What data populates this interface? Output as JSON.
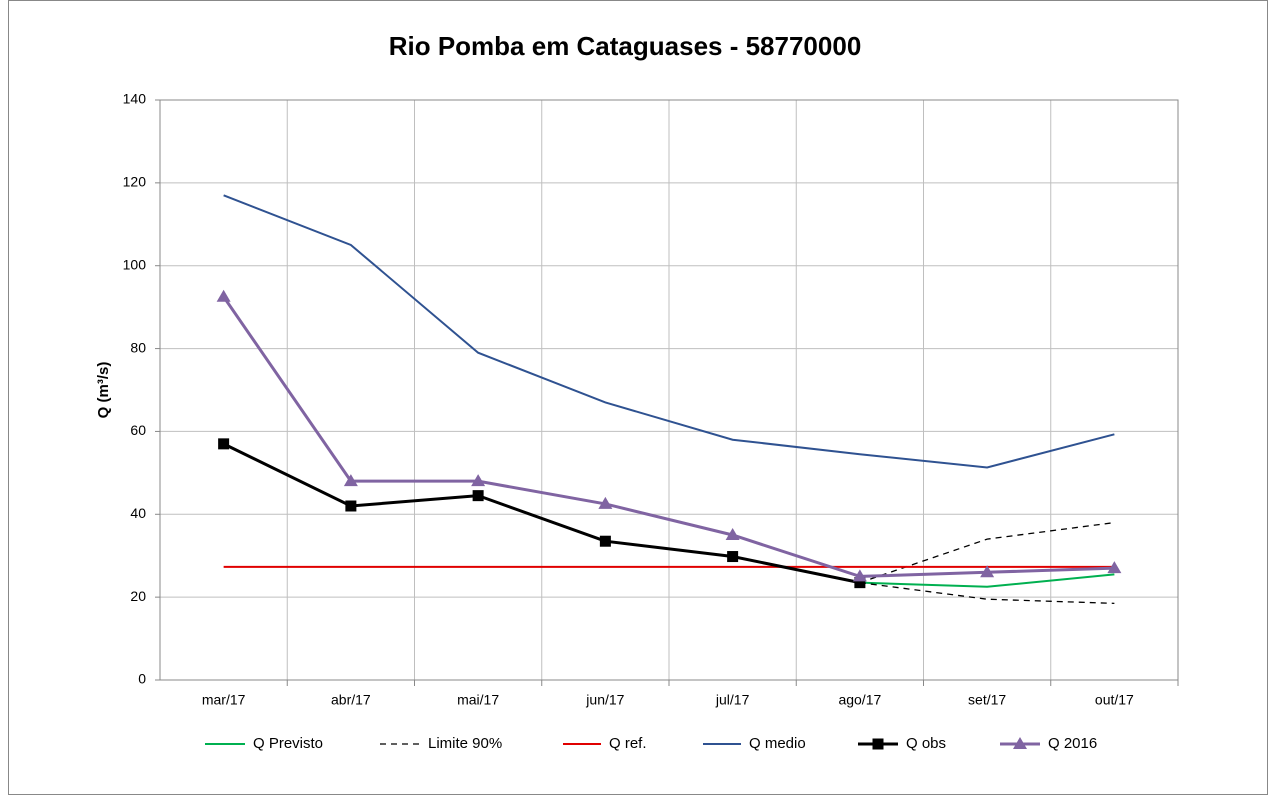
{
  "chart_data": {
    "type": "line",
    "title": "Rio Pomba em Cataguases - 58770000",
    "y_label": "Q (m³/s)",
    "categories": [
      "mar/17",
      "abr/17",
      "mai/17",
      "jun/17",
      "jul/17",
      "ago/17",
      "set/17",
      "out/17"
    ],
    "ylim": [
      0,
      140
    ],
    "yticks": [
      0,
      20,
      40,
      60,
      80,
      100,
      120,
      140
    ],
    "grid": true,
    "legend": "bottom",
    "series": [
      {
        "name": "Q Previsto",
        "color": "#00b050",
        "values": [
          null,
          null,
          null,
          null,
          null,
          23.5,
          22.5,
          25.5
        ]
      },
      {
        "name": "Limite 90%",
        "color": "#000000",
        "dash": true,
        "values": [
          null,
          null,
          null,
          null,
          null,
          23.5,
          34,
          38
        ],
        "values_low": [
          null,
          null,
          null,
          null,
          null,
          23.5,
          19.5,
          18.5
        ]
      },
      {
        "name": "Q ref.",
        "color": "#e00000",
        "values": [
          27.3,
          27.3,
          27.3,
          27.3,
          27.3,
          27.3,
          27.3,
          27.3
        ]
      },
      {
        "name": "Q medio",
        "color": "#2f5291",
        "values": [
          117,
          105,
          79,
          67,
          58,
          54.5,
          51.3,
          59.3
        ]
      },
      {
        "name": "Q obs",
        "color": "#000000",
        "width": 3,
        "marker": "square",
        "values": [
          57,
          42,
          44.5,
          33.5,
          29.8,
          23.5,
          null,
          null
        ]
      },
      {
        "name": "Q 2016",
        "color": "#8064a2",
        "width": 3,
        "marker": "triangle",
        "values": [
          92.5,
          48,
          48,
          42.5,
          35,
          25,
          26,
          27
        ]
      }
    ]
  }
}
